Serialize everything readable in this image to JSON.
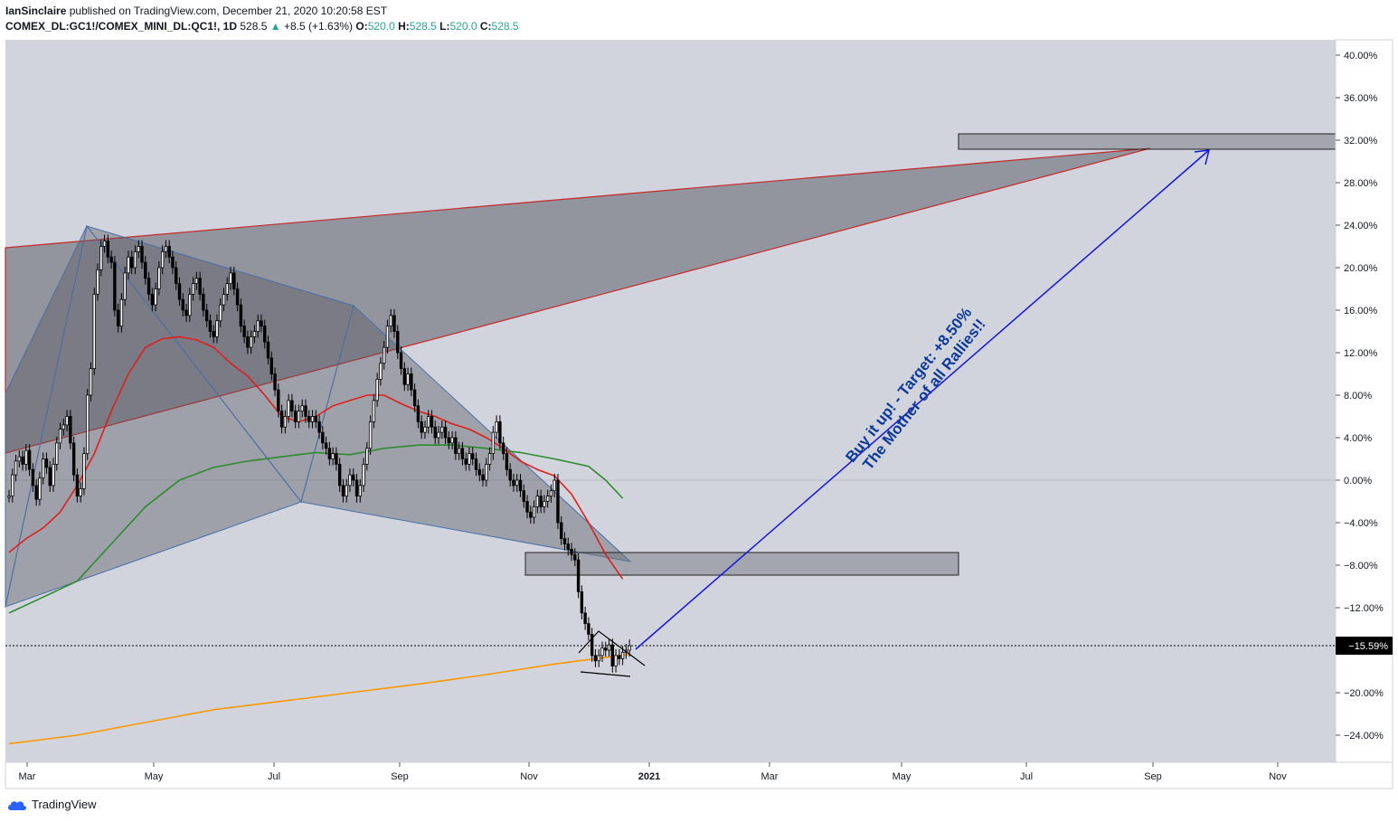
{
  "header": {
    "author": "IanSinclaire",
    "published": "published on TradingView.com, December 21, 2020 10:20:58 EST",
    "symbol": "COMEX_DL:GC1!/COMEX_MINI_DL:QC1!, 1D",
    "last": "528.5",
    "change_arrow": "▲",
    "change": "+8.5 (+1.63%)",
    "o_label": "O:",
    "o": "520.0",
    "h_label": "H:",
    "h": "528.5",
    "l_label": "L:",
    "l": "520.0",
    "c_label": "C:",
    "c": "528.5"
  },
  "footer": {
    "brand": "TradingView"
  },
  "colors": {
    "background": "#d1d4dc",
    "candle": "#000000",
    "ma_red": "#e01e1e",
    "ma_green": "#2e8b2e",
    "ma_orange": "#ff9800",
    "pattern_outline": "#4a6fa5",
    "wedge_outline": "#c62828",
    "arrow": "#1515d6",
    "label_text": "#0d3a9a"
  },
  "chart_data": {
    "type": "candlestick",
    "y_unit": "%",
    "y_ticks": [
      "40.00%",
      "36.00%",
      "32.00%",
      "28.00%",
      "24.00%",
      "20.00%",
      "16.00%",
      "12.00%",
      "8.00%",
      "4.00%",
      "0.00%",
      "−4.00%",
      "−8.00%",
      "−12.00%",
      "−20.00%",
      "−24.00%"
    ],
    "x_ticks": [
      "Mar",
      "May",
      "Jul",
      "Sep",
      "Nov",
      "2021",
      "Mar",
      "May",
      "Jul",
      "Sep",
      "Nov"
    ],
    "last_value_label": "−15.59%",
    "last_value": -15.59,
    "annotation_line1": "Buy it up! - Target: +8.50%",
    "annotation_line2": "The Mother of all Rallies!!",
    "candles": [
      [
        0,
        -1.5
      ],
      [
        1,
        0.5
      ],
      [
        2,
        1.8
      ],
      [
        3,
        2.2
      ],
      [
        4,
        1.5
      ],
      [
        5,
        2.8
      ],
      [
        6,
        1.0
      ],
      [
        7,
        -0.5
      ],
      [
        8,
        -1.8
      ],
      [
        9,
        0.2
      ],
      [
        10,
        2.0
      ],
      [
        11,
        1.2
      ],
      [
        12,
        -0.5
      ],
      [
        13,
        1.5
      ],
      [
        14,
        3.5
      ],
      [
        15,
        4.8
      ],
      [
        16,
        5.2
      ],
      [
        17,
        6.0
      ],
      [
        18,
        3.5
      ],
      [
        19,
        0.5
      ],
      [
        20,
        -1.5
      ],
      [
        21,
        -0.8
      ],
      [
        22,
        2.5
      ],
      [
        23,
        8.0
      ],
      [
        24,
        10.5
      ],
      [
        25,
        17.5
      ],
      [
        26,
        19.8
      ],
      [
        27,
        22.0
      ],
      [
        28,
        22.5
      ],
      [
        29,
        21.0
      ],
      [
        30,
        20.5
      ],
      [
        31,
        16.0
      ],
      [
        32,
        14.5
      ],
      [
        33,
        17.0
      ],
      [
        34,
        19.5
      ],
      [
        35,
        21.0
      ],
      [
        36,
        20.0
      ],
      [
        37,
        21.5
      ],
      [
        38,
        22.0
      ],
      [
        39,
        20.5
      ],
      [
        40,
        19.0
      ],
      [
        41,
        17.5
      ],
      [
        42,
        16.5
      ],
      [
        43,
        18.0
      ],
      [
        44,
        20.0
      ],
      [
        45,
        21.5
      ],
      [
        46,
        22.0
      ],
      [
        47,
        21.0
      ],
      [
        48,
        20.0
      ],
      [
        49,
        18.5
      ],
      [
        50,
        17.0
      ],
      [
        51,
        16.0
      ],
      [
        52,
        15.5
      ],
      [
        53,
        17.5
      ],
      [
        54,
        18.5
      ],
      [
        55,
        19.0
      ],
      [
        56,
        17.5
      ],
      [
        57,
        16.0
      ],
      [
        58,
        15.0
      ],
      [
        59,
        14.0
      ],
      [
        60,
        13.5
      ],
      [
        61,
        15.0
      ],
      [
        62,
        16.5
      ],
      [
        63,
        17.5
      ],
      [
        64,
        18.5
      ],
      [
        65,
        19.5
      ],
      [
        66,
        18.0
      ],
      [
        67,
        16.5
      ],
      [
        68,
        14.5
      ],
      [
        69,
        13.5
      ],
      [
        70,
        12.5
      ],
      [
        71,
        13.5
      ],
      [
        72,
        14.0
      ],
      [
        73,
        15.0
      ],
      [
        74,
        14.5
      ],
      [
        75,
        13.0
      ],
      [
        76,
        11.5
      ],
      [
        77,
        10.0
      ],
      [
        78,
        8.5
      ],
      [
        79,
        6.5
      ],
      [
        80,
        5.0
      ],
      [
        81,
        6.0
      ],
      [
        82,
        7.5
      ],
      [
        83,
        6.5
      ],
      [
        84,
        5.5
      ],
      [
        85,
        6.5
      ],
      [
        86,
        7.0
      ],
      [
        87,
        6.0
      ],
      [
        88,
        5.5
      ],
      [
        89,
        6.0
      ],
      [
        90,
        5.5
      ],
      [
        91,
        4.5
      ],
      [
        92,
        3.5
      ],
      [
        93,
        3.0
      ],
      [
        94,
        2.0
      ],
      [
        95,
        2.5
      ],
      [
        96,
        1.5
      ],
      [
        97,
        -0.5
      ],
      [
        98,
        -1.5
      ],
      [
        99,
        -0.5
      ],
      [
        100,
        0.5
      ],
      [
        101,
        0.0
      ],
      [
        102,
        -1.5
      ],
      [
        103,
        -0.5
      ],
      [
        104,
        1.5
      ],
      [
        105,
        3.0
      ],
      [
        106,
        5.5
      ],
      [
        107,
        7.5
      ],
      [
        108,
        9.5
      ],
      [
        109,
        11.0
      ],
      [
        110,
        12.5
      ],
      [
        111,
        14.5
      ],
      [
        112,
        15.5
      ],
      [
        113,
        14.0
      ],
      [
        114,
        12.0
      ],
      [
        115,
        10.5
      ],
      [
        116,
        9.0
      ],
      [
        117,
        10.0
      ],
      [
        118,
        8.5
      ],
      [
        119,
        7.0
      ],
      [
        120,
        5.5
      ],
      [
        121,
        4.5
      ],
      [
        122,
        5.0
      ],
      [
        123,
        6.0
      ],
      [
        124,
        5.0
      ],
      [
        125,
        4.0
      ],
      [
        126,
        4.5
      ],
      [
        127,
        5.0
      ],
      [
        128,
        4.0
      ],
      [
        129,
        3.5
      ],
      [
        130,
        4.0
      ],
      [
        131,
        2.5
      ],
      [
        132,
        3.0
      ],
      [
        133,
        2.0
      ],
      [
        134,
        1.5
      ],
      [
        135,
        2.5
      ],
      [
        136,
        2.0
      ],
      [
        137,
        1.0
      ],
      [
        138,
        0.5
      ],
      [
        139,
        0.0
      ],
      [
        140,
        1.5
      ],
      [
        141,
        2.5
      ],
      [
        142,
        4.5
      ],
      [
        143,
        5.5
      ],
      [
        144,
        3.5
      ],
      [
        145,
        2.5
      ],
      [
        146,
        1.0
      ],
      [
        147,
        0.0
      ],
      [
        148,
        -0.5
      ],
      [
        149,
        0.0
      ],
      [
        150,
        -1.0
      ],
      [
        151,
        -2.0
      ],
      [
        152,
        -3.0
      ],
      [
        153,
        -3.5
      ],
      [
        154,
        -2.5
      ],
      [
        155,
        -1.5
      ],
      [
        156,
        -2.5
      ],
      [
        157,
        -2.0
      ],
      [
        158,
        -1.5
      ],
      [
        159,
        -1.0
      ],
      [
        160,
        0.0
      ],
      [
        161,
        -4.0
      ],
      [
        162,
        -5.5
      ],
      [
        163,
        -6.0
      ],
      [
        164,
        -6.5
      ],
      [
        165,
        -7.0
      ],
      [
        166,
        -7.5
      ],
      [
        167,
        -10.5
      ],
      [
        168,
        -12.5
      ],
      [
        169,
        -13.5
      ],
      [
        170,
        -14.5
      ],
      [
        171,
        -16.5
      ],
      [
        172,
        -17.0
      ],
      [
        173,
        -16.5
      ],
      [
        174,
        -15.8
      ],
      [
        175,
        -16.0
      ],
      [
        176,
        -15.5
      ],
      [
        177,
        -17.5
      ],
      [
        178,
        -16.5
      ],
      [
        179,
        -16.8
      ],
      [
        180,
        -16.2
      ],
      [
        181,
        -16.0
      ],
      [
        182,
        -15.59
      ]
    ],
    "ma_red": [
      [
        0,
        -6.8
      ],
      [
        5,
        -5.5
      ],
      [
        10,
        -4.5
      ],
      [
        15,
        -3.0
      ],
      [
        20,
        -0.5
      ],
      [
        25,
        2.5
      ],
      [
        30,
        6.5
      ],
      [
        35,
        10.0
      ],
      [
        40,
        12.5
      ],
      [
        45,
        13.3
      ],
      [
        50,
        13.5
      ],
      [
        55,
        13.2
      ],
      [
        60,
        12.5
      ],
      [
        65,
        11.0
      ],
      [
        70,
        9.8
      ],
      [
        75,
        8.0
      ],
      [
        80,
        6.0
      ],
      [
        85,
        5.5
      ],
      [
        90,
        6.0
      ],
      [
        95,
        7.0
      ],
      [
        100,
        7.5
      ],
      [
        105,
        8.0
      ],
      [
        110,
        8.0
      ],
      [
        115,
        7.2
      ],
      [
        120,
        6.5
      ],
      [
        125,
        6.0
      ],
      [
        130,
        5.3
      ],
      [
        135,
        4.8
      ],
      [
        140,
        4.0
      ],
      [
        145,
        3.0
      ],
      [
        150,
        1.8
      ],
      [
        155,
        1.0
      ],
      [
        160,
        0.4
      ],
      [
        165,
        -1.3
      ],
      [
        170,
        -4.0
      ],
      [
        175,
        -7.0
      ],
      [
        180,
        -9.3
      ]
    ],
    "ma_green": [
      [
        0,
        -12.5
      ],
      [
        10,
        -11.0
      ],
      [
        20,
        -9.5
      ],
      [
        30,
        -6.0
      ],
      [
        40,
        -2.5
      ],
      [
        50,
        0.0
      ],
      [
        60,
        1.2
      ],
      [
        70,
        1.8
      ],
      [
        80,
        2.2
      ],
      [
        90,
        2.6
      ],
      [
        100,
        2.4
      ],
      [
        110,
        3.0
      ],
      [
        120,
        3.3
      ],
      [
        130,
        3.3
      ],
      [
        140,
        3.0
      ],
      [
        150,
        2.6
      ],
      [
        160,
        2.0
      ],
      [
        170,
        1.3
      ],
      [
        175,
        0.0
      ],
      [
        180,
        -1.7
      ]
    ],
    "ma_orange": [
      [
        0,
        -24.8
      ],
      [
        20,
        -24.0
      ],
      [
        40,
        -22.8
      ],
      [
        60,
        -21.6
      ],
      [
        80,
        -20.8
      ],
      [
        100,
        -20.0
      ],
      [
        120,
        -19.2
      ],
      [
        140,
        -18.3
      ],
      [
        160,
        -17.3
      ],
      [
        172,
        -16.8
      ],
      [
        182,
        -16.4
      ]
    ]
  }
}
